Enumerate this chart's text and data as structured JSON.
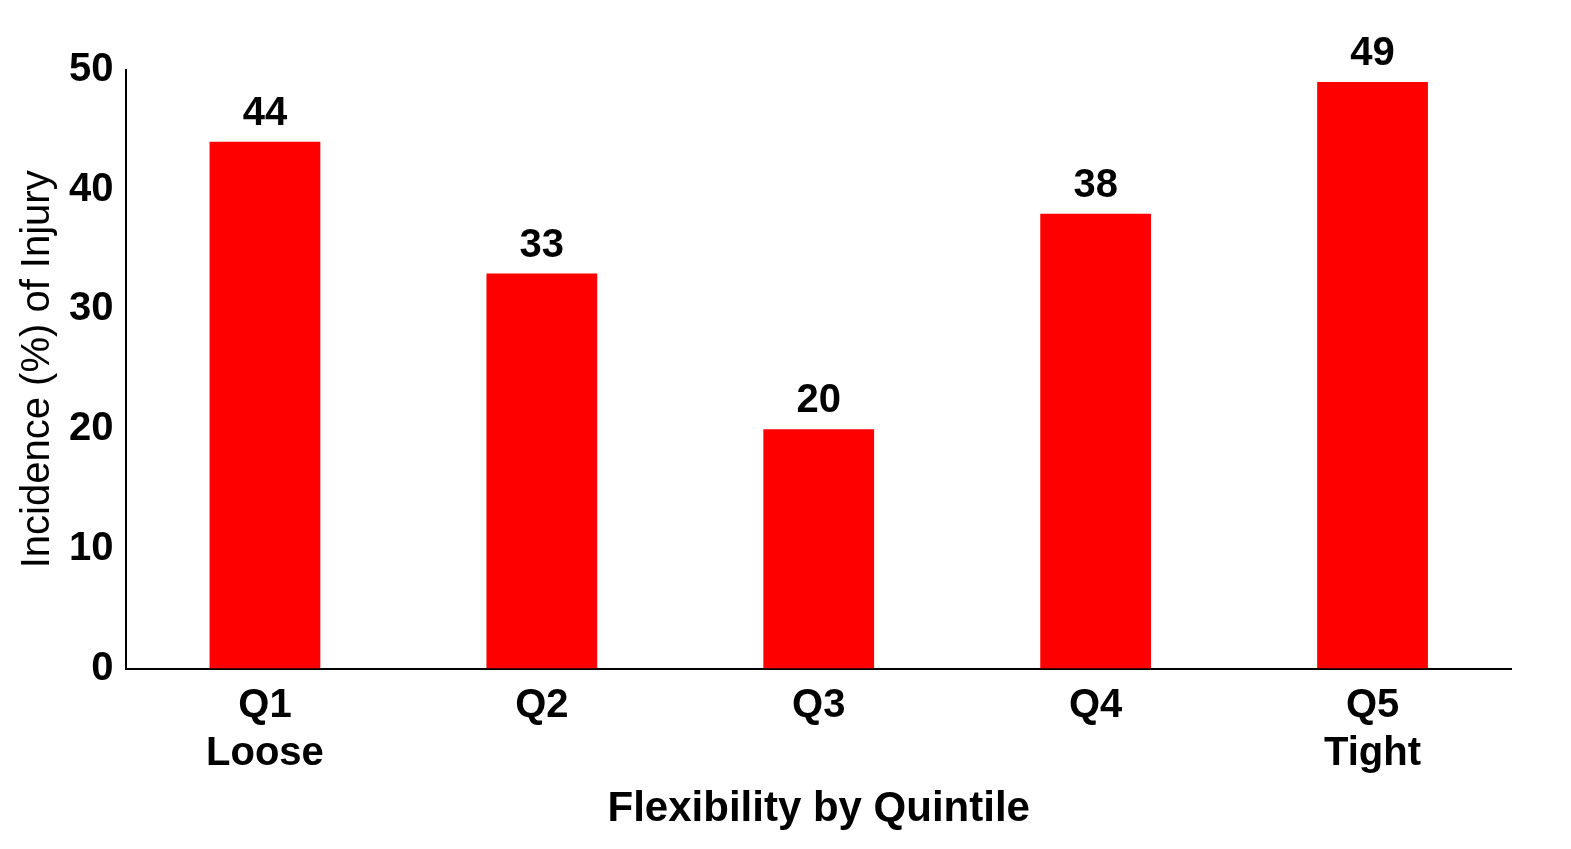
{
  "chart_data": {
    "type": "bar",
    "xlabel": "Flexibility by Quintile",
    "ylabel": "Incidence (%) of Injury",
    "categories": [
      "Q1\nLoose",
      "Q2",
      "Q3",
      "Q4",
      "Q5\nTight"
    ],
    "values": [
      44,
      33,
      20,
      38,
      49
    ],
    "color": "#ff0000",
    "ylim": [
      0,
      50
    ],
    "yticks": [
      0,
      10,
      20,
      30,
      40,
      50
    ],
    "data_labels": true,
    "grid": false,
    "legend": false
  }
}
